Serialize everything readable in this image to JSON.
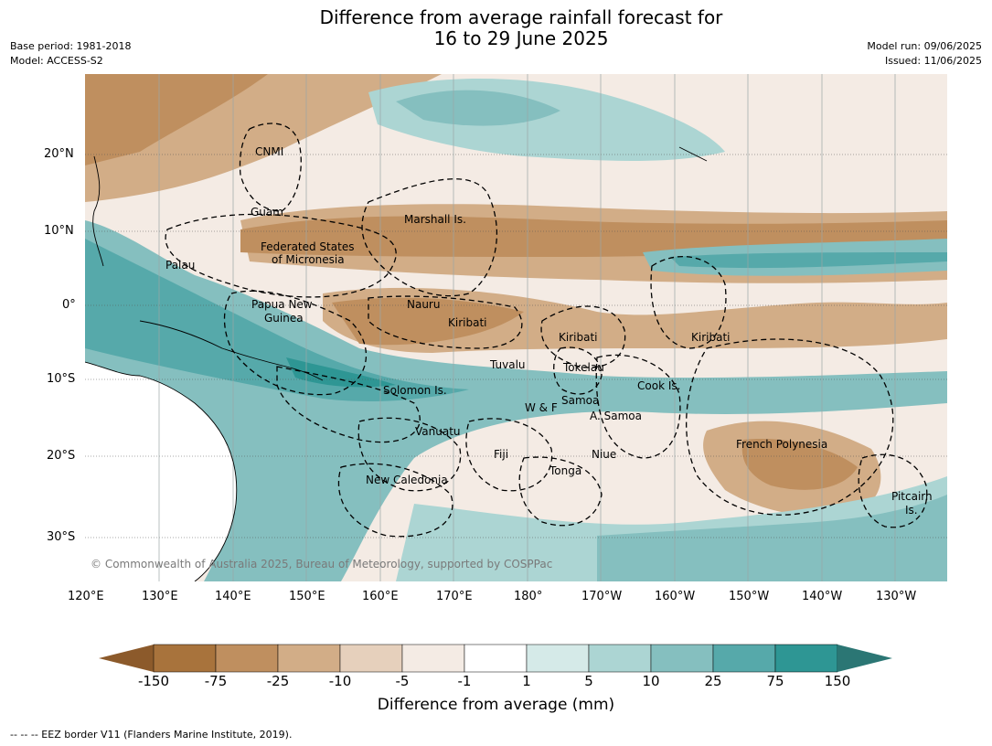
{
  "header": {
    "title_line1": "Difference from average rainfall forecast for",
    "title_line2": "16 to 29 June 2025",
    "base_period": "Base period: 1981-2018",
    "model": "Model: ACCESS-S2",
    "model_run": "Model run: 09/06/2025",
    "issued": "Issued: 11/06/2025"
  },
  "map": {
    "lat_labels": [
      "20°N",
      "10°N",
      "0°",
      "10°S",
      "20°S",
      "30°S"
    ],
    "lon_labels": [
      "120°E",
      "130°E",
      "140°E",
      "150°E",
      "160°E",
      "170°E",
      "180°",
      "170°W",
      "160°W",
      "150°W",
      "140°W",
      "130°W"
    ],
    "places": [
      {
        "name": "CNMI"
      },
      {
        "name": "Guam"
      },
      {
        "name": "Marshall Is."
      },
      {
        "name": "Federated States"
      },
      {
        "name": "of Micronesia"
      },
      {
        "name": "Palau"
      },
      {
        "name": "Papua New"
      },
      {
        "name": "Guinea"
      },
      {
        "name": "Nauru"
      },
      {
        "name": "Kiribati"
      },
      {
        "name": "Kiribati"
      },
      {
        "name": "Kiribati"
      },
      {
        "name": "Tuvalu"
      },
      {
        "name": "Tokelau"
      },
      {
        "name": "Cook Is."
      },
      {
        "name": "Solomon Is."
      },
      {
        "name": "W & F"
      },
      {
        "name": "Samoa"
      },
      {
        "name": "A. Samoa"
      },
      {
        "name": "Vanuatu"
      },
      {
        "name": "Fiji"
      },
      {
        "name": "Niue"
      },
      {
        "name": "Tonga"
      },
      {
        "name": "French Polynesia"
      },
      {
        "name": "New Caledonia"
      },
      {
        "name": "Pitcairn"
      },
      {
        "name": "Is."
      }
    ],
    "copyright": "© Commonwealth of Australia 2025, Bureau of Meteorology, supported by COSPPac"
  },
  "colorbar": {
    "ticks": [
      "-150",
      "-75",
      "-25",
      "-10",
      "-5",
      "-1",
      "1",
      "5",
      "10",
      "25",
      "75",
      "150"
    ],
    "colors": [
      "#8c5a2b",
      "#a8733c",
      "#bf8f5f",
      "#d2ad87",
      "#e6d0bc",
      "#f4ebe4",
      "#ffffff",
      "#d5eae8",
      "#acd5d3",
      "#85bfbf",
      "#56a9aa",
      "#2e9694",
      "#2b7674"
    ],
    "label": "Difference from average (mm)"
  },
  "footer": {
    "legend_text": "--  --  -- EEZ border V11 (Flanders Marine Institute, 2019)."
  }
}
